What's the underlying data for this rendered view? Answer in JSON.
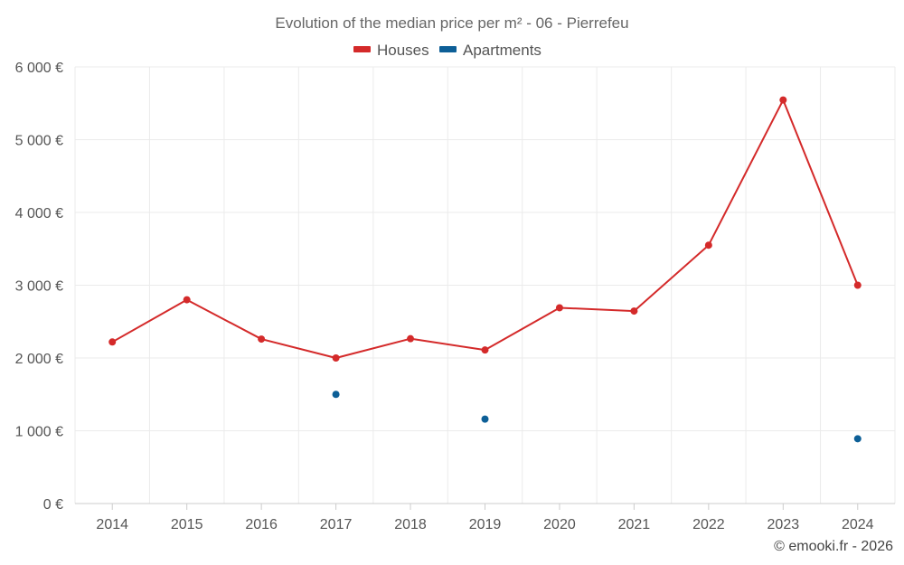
{
  "chart_data": {
    "type": "line",
    "title": "Evolution of the median price per m² - 06 - Pierrefeu",
    "categories": [
      "2014",
      "2015",
      "2016",
      "2017",
      "2018",
      "2019",
      "2020",
      "2021",
      "2022",
      "2023",
      "2024"
    ],
    "ylim": [
      0,
      6000
    ],
    "yticks": [
      0,
      1000,
      2000,
      3000,
      4000,
      5000,
      6000
    ],
    "ytick_labels": [
      "0 €",
      "1 000 €",
      "2 000 €",
      "3 000 €",
      "4 000 €",
      "5 000 €",
      "6 000 €"
    ],
    "grid": true,
    "legend_position": "top-center",
    "series": [
      {
        "name": "Houses",
        "color": "#d42a2a",
        "line": true,
        "values": [
          2220,
          2800,
          2260,
          2000,
          2265,
          2110,
          2690,
          2645,
          3550,
          5545,
          3000
        ]
      },
      {
        "name": "Apartments",
        "color": "#0d5f97",
        "line": false,
        "values": [
          null,
          null,
          null,
          1500,
          null,
          1160,
          null,
          null,
          null,
          null,
          890
        ]
      }
    ]
  },
  "credit": "© emooki.fr - 2026"
}
